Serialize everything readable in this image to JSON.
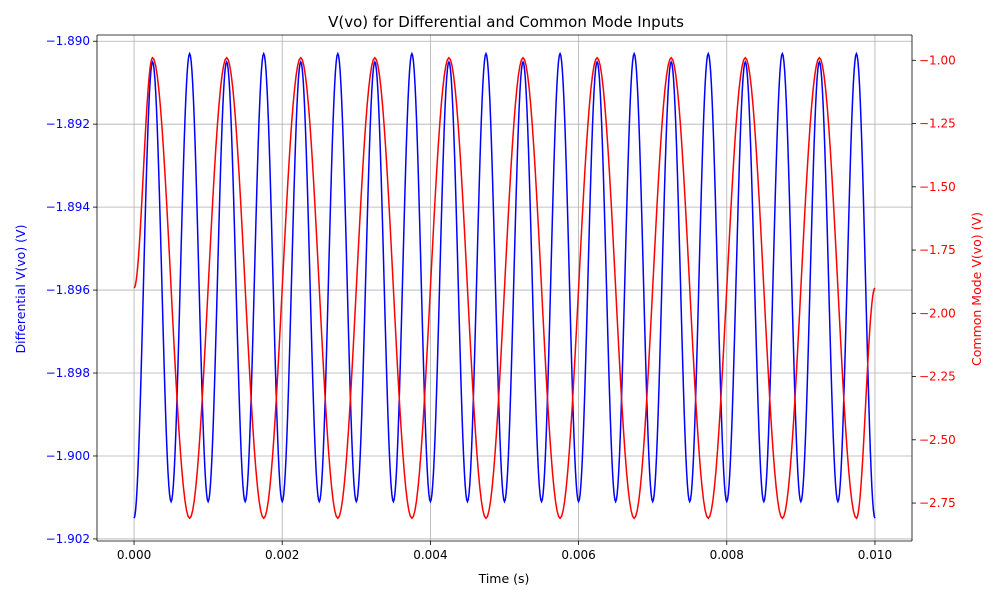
{
  "chart_data": {
    "type": "line",
    "title": "V(vo) for Differential and Common Mode Inputs",
    "xlabel": "Time (s)",
    "ylabel_left": "Differential V(vo) (V)",
    "ylabel_right": "Common Mode V(vo) (V)",
    "grid": true,
    "xlim": [
      -0.0005,
      0.0105
    ],
    "ylim_left": [
      -1.90205,
      -1.88985
    ],
    "ylim_right": [
      -2.9,
      -0.9
    ],
    "xticks": [
      0.0,
      0.002,
      0.004,
      0.006,
      0.008,
      0.01
    ],
    "xtick_labels": [
      "0.000",
      "0.002",
      "0.004",
      "0.006",
      "0.008",
      "0.010"
    ],
    "yticks_left": [
      -1.89,
      -1.892,
      -1.894,
      -1.896,
      -1.898,
      -1.9,
      -1.902
    ],
    "ytick_labels_left": [
      "−1.890",
      "−1.892",
      "−1.894",
      "−1.896",
      "−1.898",
      "−1.900",
      "−1.902"
    ],
    "yticks_right": [
      -1.0,
      -1.25,
      -1.5,
      -1.75,
      -2.0,
      -2.25,
      -2.5,
      -2.75
    ],
    "ytick_labels_right": [
      "−1.00",
      "−1.25",
      "−1.50",
      "−1.75",
      "−2.00",
      "−2.25",
      "−2.50",
      "−2.75"
    ],
    "series": [
      {
        "axis": "left",
        "color": "#0000ff",
        "x": [
          0.0,
          0.00025,
          0.0005,
          0.00075,
          0.001,
          0.00125,
          0.0015,
          0.00175,
          0.002,
          0.00225,
          0.0025,
          0.00275,
          0.003,
          0.00325,
          0.0035,
          0.00375,
          0.004,
          0.00425,
          0.0045,
          0.00475,
          0.005,
          0.00525,
          0.0055,
          0.00575,
          0.006,
          0.00625,
          0.0065,
          0.00675,
          0.007,
          0.00725,
          0.0075,
          0.00775,
          0.008,
          0.00825,
          0.0085,
          0.00875,
          0.009,
          0.00925,
          0.0095,
          0.00975,
          0.01
        ],
        "y": [
          -1.9015,
          -1.8905,
          -1.9011,
          -1.8903,
          -1.9011,
          -1.8905,
          -1.9011,
          -1.8903,
          -1.9011,
          -1.8905,
          -1.9011,
          -1.8903,
          -1.9011,
          -1.8905,
          -1.9011,
          -1.8903,
          -1.9011,
          -1.8905,
          -1.9011,
          -1.8903,
          -1.9011,
          -1.8905,
          -1.9011,
          -1.8903,
          -1.9011,
          -1.8905,
          -1.9011,
          -1.8903,
          -1.9011,
          -1.8905,
          -1.9011,
          -1.8903,
          -1.9011,
          -1.8905,
          -1.9011,
          -1.8903,
          -1.9011,
          -1.8905,
          -1.9011,
          -1.8903,
          -1.9015
        ]
      },
      {
        "axis": "right",
        "color": "#ff0000",
        "x": [
          0.0,
          0.00025,
          0.00075,
          0.00125,
          0.00175,
          0.00225,
          0.00275,
          0.00325,
          0.00375,
          0.00425,
          0.00475,
          0.00525,
          0.00575,
          0.00625,
          0.00675,
          0.00725,
          0.00775,
          0.00825,
          0.00875,
          0.00925,
          0.00975,
          0.01
        ],
        "y": [
          -1.9,
          -0.99,
          -2.81,
          -0.99,
          -2.81,
          -0.99,
          -2.81,
          -0.99,
          -2.81,
          -0.99,
          -2.81,
          -0.99,
          -2.81,
          -0.99,
          -2.81,
          -0.99,
          -2.81,
          -0.99,
          -2.81,
          -0.99,
          -2.81,
          -1.9
        ]
      }
    ]
  }
}
